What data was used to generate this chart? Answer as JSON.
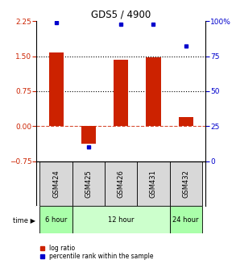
{
  "title": "GDS5 / 4900",
  "samples": [
    "GSM424",
    "GSM425",
    "GSM426",
    "GSM431",
    "GSM432"
  ],
  "log_ratio": [
    1.57,
    -0.38,
    1.42,
    1.47,
    0.2
  ],
  "percentile_rank": [
    99,
    10,
    98,
    98,
    82
  ],
  "ylim_left": [
    -0.75,
    2.25
  ],
  "ylim_right": [
    0,
    100
  ],
  "yticks_left": [
    -0.75,
    0,
    0.75,
    1.5,
    2.25
  ],
  "yticks_right": [
    0,
    25,
    50,
    75,
    100
  ],
  "hline_dotted": [
    1.5,
    0.75
  ],
  "hline_dashed": 0,
  "bar_color": "#cc2200",
  "dot_color": "#0000cc",
  "time_groups": [
    {
      "label": "6 hour",
      "start": 0,
      "end": 1,
      "color": "#aaffaa"
    },
    {
      "label": "12 hour",
      "start": 1,
      "end": 4,
      "color": "#ccffcc"
    },
    {
      "label": "24 hour",
      "start": 4,
      "end": 5,
      "color": "#aaffaa"
    }
  ],
  "legend_bar_color": "#cc2200",
  "legend_dot_color": "#0000cc",
  "bg_color": "#d8d8d8"
}
